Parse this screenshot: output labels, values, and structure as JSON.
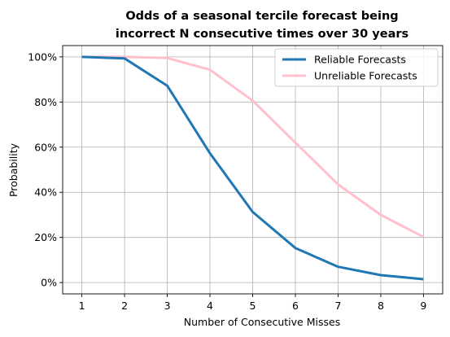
{
  "chart_data": {
    "type": "line",
    "title_lines": [
      "Odds of a seasonal tercile forecast being",
      "incorrect N consecutive times over 30 years"
    ],
    "xlabel": "Number of Consecutive Misses",
    "ylabel": "Probability",
    "x": [
      1,
      2,
      3,
      4,
      5,
      6,
      7,
      8,
      9
    ],
    "x_ticks": [
      "1",
      "2",
      "3",
      "4",
      "5",
      "6",
      "7",
      "8",
      "9"
    ],
    "xlim": [
      0.55,
      9.45
    ],
    "ylim": [
      -0.05,
      1.05
    ],
    "y_ticks": [
      {
        "value": 0.0,
        "label": "0%"
      },
      {
        "value": 0.2,
        "label": "20%"
      },
      {
        "value": 0.4,
        "label": "40%"
      },
      {
        "value": 0.6,
        "label": "60%"
      },
      {
        "value": 0.8,
        "label": "80%"
      },
      {
        "value": 1.0,
        "label": "100%"
      }
    ],
    "grid": true,
    "legend_position": "top-right",
    "series": [
      {
        "name": "Reliable Forecasts",
        "color": "#1f77b4",
        "values": [
          1.0,
          0.993,
          0.872,
          0.573,
          0.313,
          0.153,
          0.07,
          0.033,
          0.015
        ]
      },
      {
        "name": "Unreliable Forecasts",
        "color": "#ffc0cb",
        "values": [
          1.0,
          1.0,
          0.995,
          0.943,
          0.806,
          0.62,
          0.435,
          0.3,
          0.202
        ]
      }
    ]
  }
}
